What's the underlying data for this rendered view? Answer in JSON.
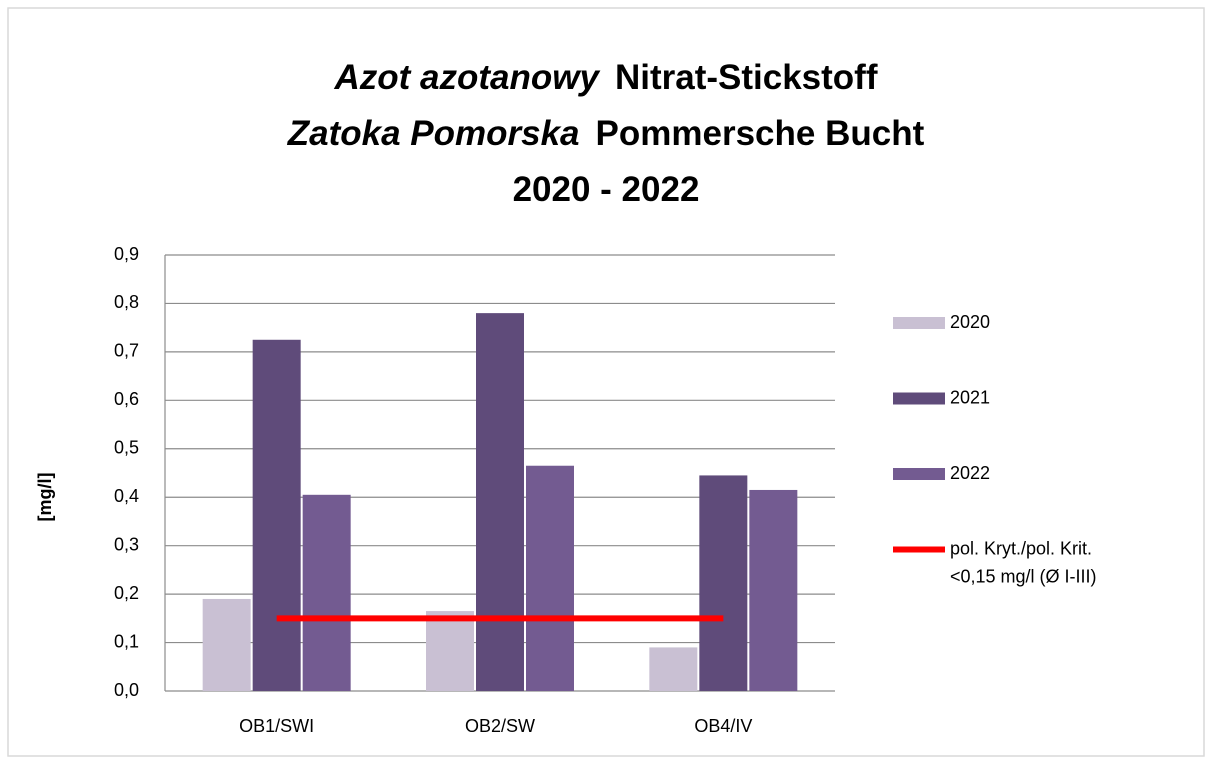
{
  "chart_data": {
    "type": "bar",
    "title": [
      [
        "Azot azotanowy",
        "Nitrat-Stickstoff"
      ],
      [
        "Zatoka Pomorska",
        "Pommersche Bucht"
      ],
      [
        "2020 - 2022"
      ]
    ],
    "ylabel": "[mg/l]",
    "categories": [
      "OB1/SWI",
      "OB2/SW",
      "OB4/IV"
    ],
    "series": [
      {
        "name": "2020",
        "color": "#c9c0d3",
        "values": [
          0.19,
          0.165,
          0.09
        ]
      },
      {
        "name": "2021",
        "color": "#5f4b7a",
        "values": [
          0.725,
          0.78,
          0.445
        ]
      },
      {
        "name": "2022",
        "color": "#735b91",
        "values": [
          0.405,
          0.465,
          0.415
        ]
      },
      {
        "name": [
          "pol. Kryt./pol. Krit.",
          "<0,15 mg/l (Ø I-III)"
        ],
        "color": "#ff0000",
        "type": "line",
        "values": [
          0.15,
          0.15,
          0.15
        ]
      }
    ],
    "ylim": [
      0,
      0.9
    ],
    "yticks": [
      {
        "value": 0,
        "label": "0,0"
      },
      {
        "value": 0.1,
        "label": "0,1"
      },
      {
        "value": 0.2,
        "label": "0,2"
      },
      {
        "value": 0.3,
        "label": "0,3"
      },
      {
        "value": 0.4,
        "label": "0,4"
      },
      {
        "value": 0.5,
        "label": "0,5"
      },
      {
        "value": 0.6,
        "label": "0,6"
      },
      {
        "value": 0.7,
        "label": "0,7"
      },
      {
        "value": 0.8,
        "label": "0,8"
      },
      {
        "value": 0.9,
        "label": "0,9"
      }
    ],
    "grid": true,
    "legend": "right"
  }
}
